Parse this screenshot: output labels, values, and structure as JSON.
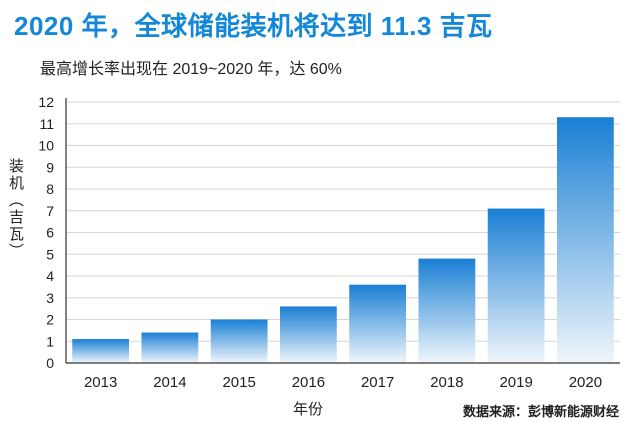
{
  "title": "2020 年，全球储能装机将达到 11.3 吉瓦",
  "subtitle": "最高增长率出现在 2019~2020 年，达 60%",
  "source": "数据来源：彭博新能源财经",
  "colors": {
    "title": "#1387d8",
    "bar_top": "#1a7fd4",
    "bar_bottom": "#f0f6fb",
    "grid": "#d6d6d6"
  },
  "chart_data": {
    "type": "bar",
    "title": "2020 年，全球储能装机将达到 11.3 吉瓦",
    "subtitle": "最高增长率出现在 2019~2020 年，达 60%",
    "xlabel": "年份",
    "ylabel": "装机（吉瓦）",
    "categories": [
      "2013",
      "2014",
      "2015",
      "2016",
      "2017",
      "2018",
      "2019",
      "2020"
    ],
    "values": [
      1.1,
      1.4,
      2.0,
      2.6,
      3.6,
      4.8,
      7.1,
      11.3
    ],
    "ylim": [
      0,
      12
    ],
    "yticks": [
      0,
      1,
      2,
      3,
      4,
      5,
      6,
      7,
      8,
      9,
      10,
      11,
      12
    ],
    "grid": true,
    "legend": "none"
  }
}
